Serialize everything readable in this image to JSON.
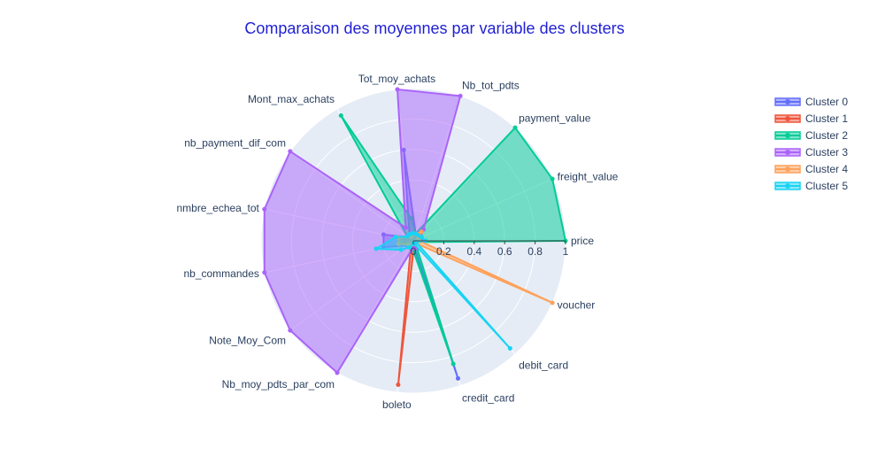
{
  "chart_data": {
    "type": "radar",
    "title": "Comparaison des moyennes par variable des clusters",
    "colors": {
      "title": "#1f1fd6",
      "polar_bg": "#e5ecf6",
      "grid": "#ffffff",
      "text": "#2a3f5f"
    },
    "theta": [
      "price",
      "freight_value",
      "payment_value",
      "Nb_tot_pdts",
      "Tot_moy_achats",
      "Mont_max_achats",
      "nb_payment_dif_com",
      "nmbre_echea_tot",
      "nb_commandes",
      "Note_Moy_Com",
      "Nb_moy_pdts_par_com",
      "boleto",
      "credit_card",
      "debit_card",
      "voucher"
    ],
    "radial_ticks": [
      "0",
      "0.2",
      "0.4",
      "0.6",
      "0.8",
      "1"
    ],
    "radial_range": [
      0,
      1
    ],
    "legend_position": "top-right",
    "series": [
      {
        "name": "Cluster 0",
        "color": "#636efa",
        "values": [
          0.08,
          0.05,
          0.05,
          0.05,
          0.6,
          0.05,
          0.04,
          0.2,
          0.2,
          0.05,
          0.05,
          0.02,
          0.95,
          0.02,
          0.02
        ]
      },
      {
        "name": "Cluster 1",
        "color": "#ef553b",
        "values": [
          0.04,
          0.03,
          0.03,
          0.03,
          0.03,
          0.03,
          0.03,
          0.06,
          0.06,
          0.03,
          0.03,
          0.95,
          0.02,
          0.02,
          0.02
        ]
      },
      {
        "name": "Cluster 2",
        "color": "#00cc96",
        "values": [
          1.0,
          1.0,
          1.0,
          0.05,
          0.15,
          0.95,
          0.05,
          0.1,
          0.1,
          0.05,
          0.05,
          0.05,
          0.85,
          0.02,
          0.02
        ]
      },
      {
        "name": "Cluster 3",
        "color": "#ab63fa",
        "values": [
          0.05,
          0.05,
          0.1,
          1.0,
          1.0,
          0.1,
          1.0,
          1.0,
          1.0,
          1.0,
          1.0,
          0.05,
          0.05,
          0.02,
          0.02
        ]
      },
      {
        "name": "Cluster 4",
        "color": "#ffa15a",
        "values": [
          0.04,
          0.03,
          0.08,
          0.05,
          0.04,
          0.03,
          0.05,
          0.1,
          0.1,
          0.04,
          0.03,
          0.02,
          0.02,
          0.02,
          1.0
        ]
      },
      {
        "name": "Cluster 5",
        "color": "#19d3f3",
        "values": [
          0.08,
          0.06,
          0.05,
          0.05,
          0.05,
          0.05,
          0.05,
          0.12,
          0.25,
          0.1,
          0.05,
          0.02,
          0.02,
          0.95,
          0.02
        ]
      }
    ]
  }
}
